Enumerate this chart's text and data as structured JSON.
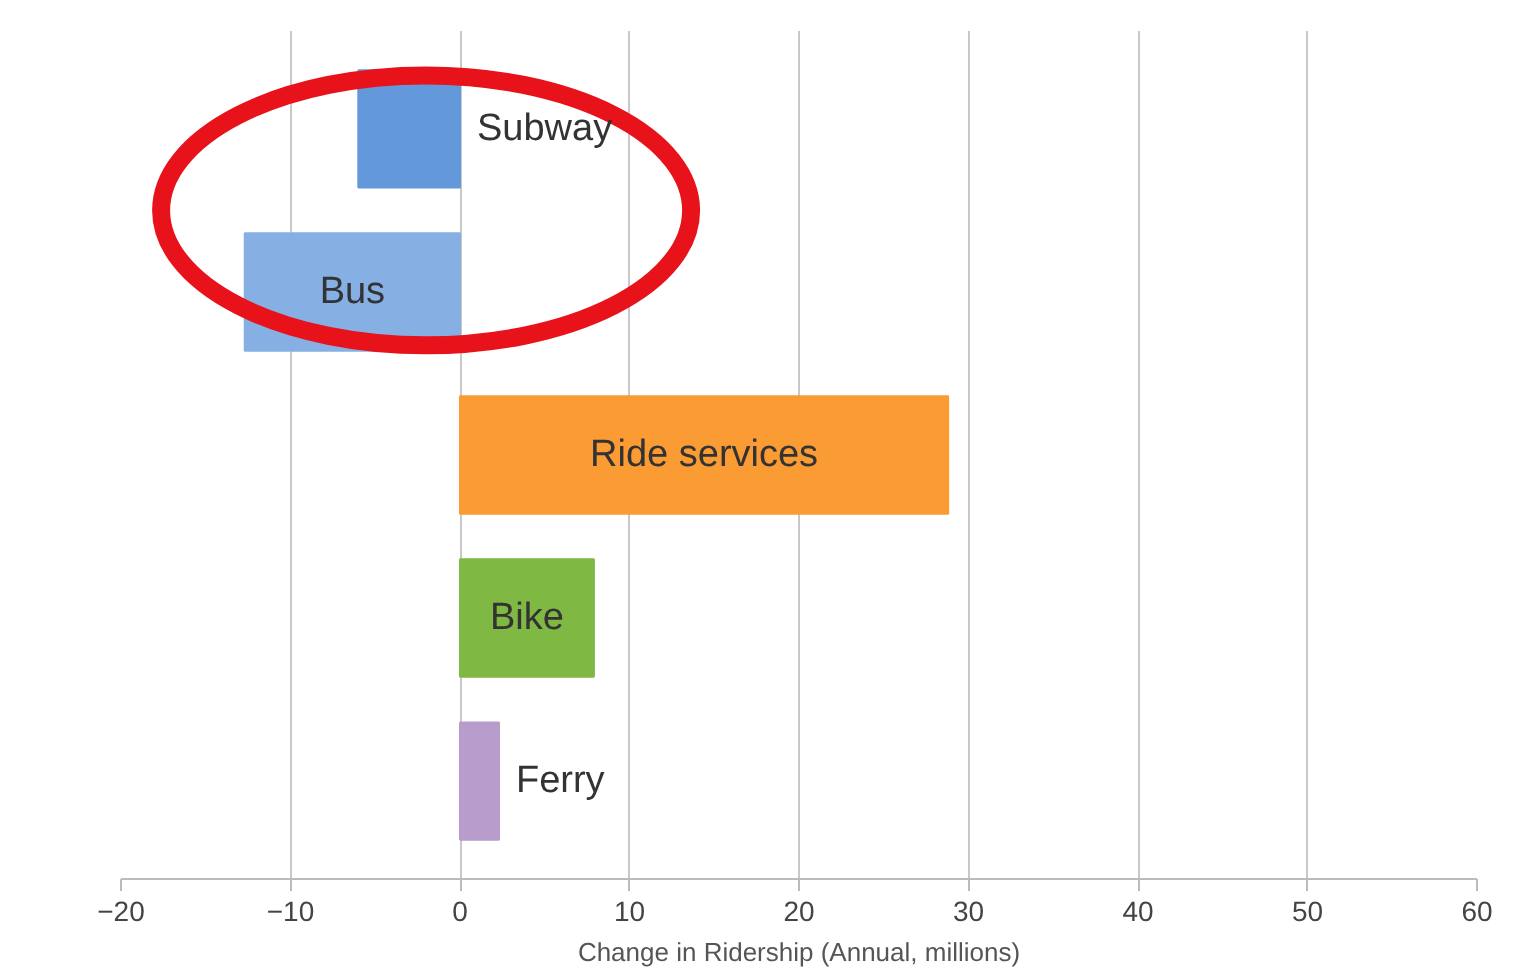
{
  "chart_data": {
    "type": "bar",
    "orientation": "horizontal",
    "xlabel": "Change in Ridership (Annual, millions)",
    "categories": [
      "Subway",
      "Bus",
      "Ride services",
      "Bike",
      "Ferry"
    ],
    "values": [
      -6.0,
      -12.7,
      28.8,
      7.9,
      2.3
    ],
    "colors": [
      "#6399db",
      "#86afe3",
      "#fb9b33",
      "#7fb843",
      "#b89ccb"
    ],
    "xlim": [
      -20,
      60
    ],
    "xticks": [
      -20,
      -10,
      0,
      10,
      20,
      30,
      40,
      50,
      60
    ],
    "grid": "x"
  }
}
